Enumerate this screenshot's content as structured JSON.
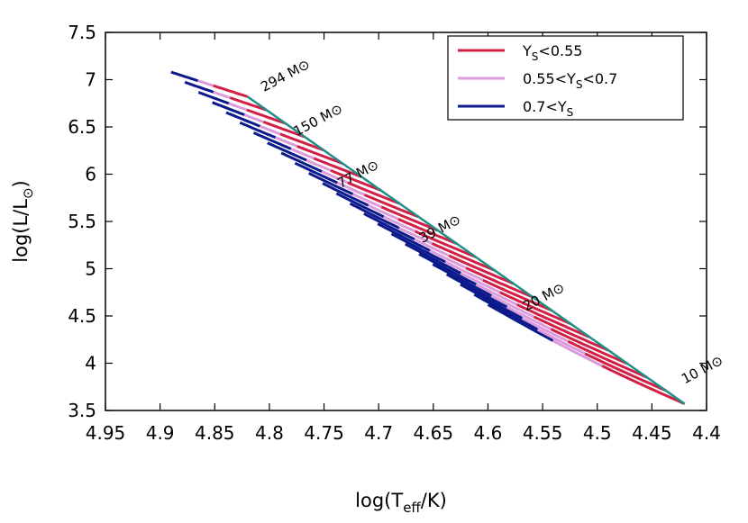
{
  "chart_data": {
    "type": "line",
    "xlabel": {
      "base": "log(T",
      "sub": "eff",
      "tail": "/K)"
    },
    "ylabel": {
      "base": "log(L/L",
      "sub": "⊙",
      "tail": ")"
    },
    "xlim": [
      4.95,
      4.4
    ],
    "ylim": [
      3.5,
      7.5
    ],
    "x_reversed": true,
    "grid": false,
    "legend_position": "top-right",
    "x_ticks": [
      "4.95",
      "4.9",
      "4.85",
      "4.8",
      "4.75",
      "4.7",
      "4.65",
      "4.6",
      "4.55",
      "4.5",
      "4.45",
      "4.4"
    ],
    "y_ticks": [
      "3.5",
      "4",
      "4.5",
      "5",
      "5.5",
      "6",
      "6.5",
      "7",
      "7.5"
    ],
    "colors": {
      "high_teff_edge": "#1f8f86",
      "ys_low": "#d21f45",
      "ys_mid": "#dc9bdc",
      "ys_high": "#0d1a8c"
    },
    "series": [
      {
        "name": "Yₛ<0.55",
        "label_parts": [
          "Y",
          "S",
          "<0.55"
        ],
        "color_key": "ys_low"
      },
      {
        "name": "0.55<Yₛ<0.7",
        "label_parts": [
          "0.55<Y",
          "S",
          "<0.7"
        ],
        "color_key": "ys_mid"
      },
      {
        "name": "0.7<Yₛ",
        "label_parts": [
          "0.7<Y",
          "S",
          ""
        ],
        "color_key": "ys_high"
      }
    ],
    "tracks": {
      "count": 24,
      "start": {
        "x": [
          4.42,
          4.82
        ],
        "y": [
          3.57,
          6.82
        ]
      },
      "end_first": {
        "x": 4.6,
        "y": 4.62
      },
      "end_last": {
        "x": 4.89,
        "y": 7.08
      },
      "segment_fraction": {
        "ys_low": [
          0.42,
          0.45
        ],
        "ys_mid": [
          0.25,
          0.2
        ],
        "ys_high": [
          0.33,
          0.35
        ]
      }
    },
    "mass_labels": [
      {
        "text": "294 M⊙",
        "x": 4.805,
        "y": 6.87
      },
      {
        "text": "150 M⊙",
        "x": 4.775,
        "y": 6.4
      },
      {
        "text": "77 M⊙",
        "x": 4.735,
        "y": 5.85
      },
      {
        "text": "39 M⊙",
        "x": 4.66,
        "y": 5.27
      },
      {
        "text": "20 M⊙",
        "x": 4.565,
        "y": 4.55
      },
      {
        "text": "10 M⊙",
        "x": 4.42,
        "y": 3.78
      }
    ]
  }
}
